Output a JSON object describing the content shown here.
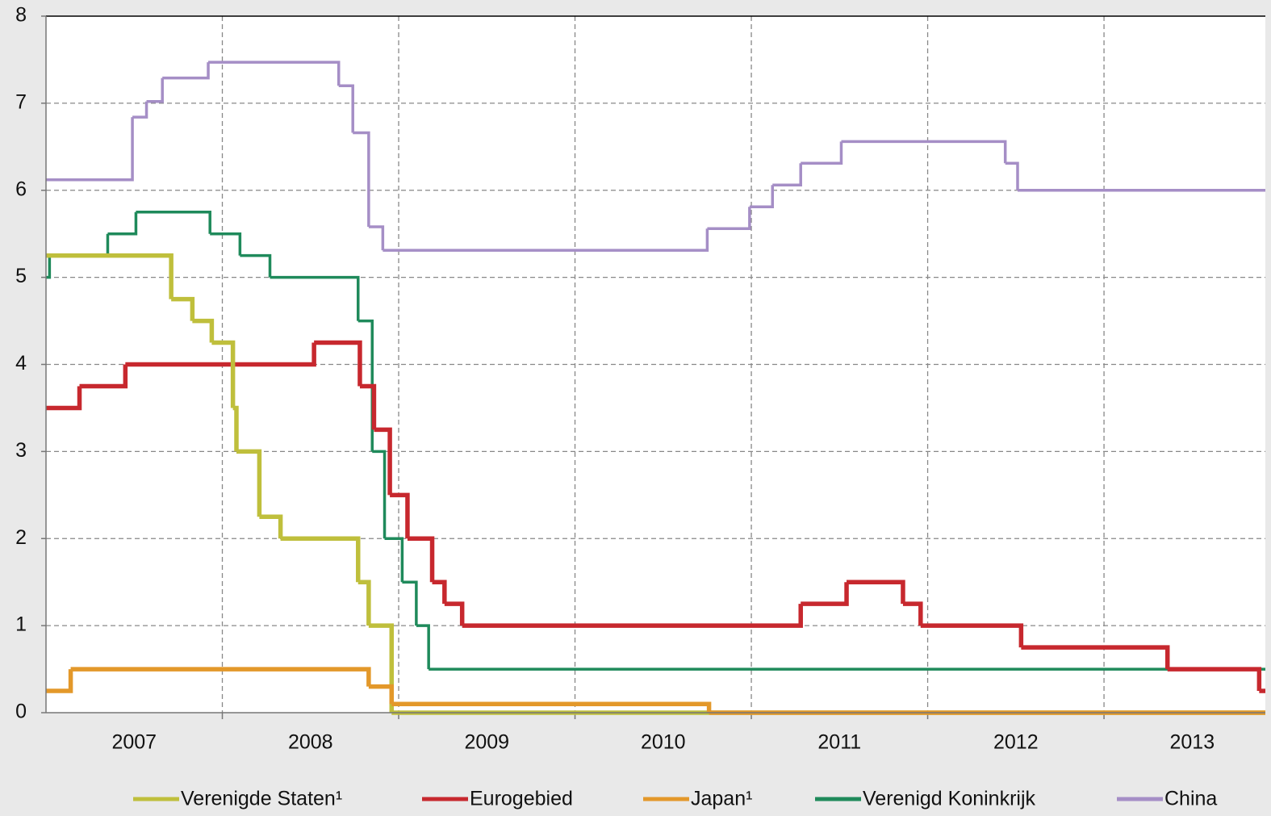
{
  "chart_data": {
    "type": "step",
    "xlim": [
      2007,
      2013.915
    ],
    "xticks": [
      {
        "value": 2007.5,
        "label": "2007"
      },
      {
        "value": 2008.5,
        "label": "2008"
      },
      {
        "value": 2009.5,
        "label": "2009"
      },
      {
        "value": 2010.5,
        "label": "2010"
      },
      {
        "value": 2011.5,
        "label": "2011"
      },
      {
        "value": 2012.5,
        "label": "2012"
      },
      {
        "value": 2013.5,
        "label": "2013"
      }
    ],
    "xgrid": [
      2008,
      2009,
      2010,
      2011,
      2012,
      2013
    ],
    "ylim": [
      0,
      8
    ],
    "yticks": [
      0,
      1,
      2,
      3,
      4,
      5,
      6,
      7,
      8
    ],
    "grid": true,
    "legend": "bottom",
    "series": [
      {
        "name": "China",
        "color": "#a58ec6",
        "width": 3.5,
        "x": [
          2007,
          2007.49,
          2007.57,
          2007.66,
          2007.92,
          2008.66,
          2008.74,
          2008.83,
          2008.91,
          2010.75,
          2010.99,
          2011.12,
          2011.28,
          2011.51,
          2012.44,
          2012.51
        ],
        "values": [
          6.12,
          6.84,
          7.02,
          7.29,
          7.47,
          7.2,
          6.66,
          5.58,
          5.31,
          5.56,
          5.81,
          6.06,
          6.31,
          6.56,
          6.31,
          6.0
        ]
      },
      {
        "name": "Verenigd Koninkrijk",
        "color": "#1f8a5b",
        "width": 3.5,
        "x": [
          2007,
          2007.02,
          2007.35,
          2007.51,
          2007.93,
          2008.1,
          2008.27,
          2008.77,
          2008.85,
          2008.92,
          2009.02,
          2009.1,
          2009.17
        ],
        "values": [
          5.0,
          5.25,
          5.5,
          5.75,
          5.5,
          5.25,
          5.0,
          4.5,
          3.0,
          2.0,
          1.5,
          1.0,
          0.5
        ]
      },
      {
        "name": "Eurogebied",
        "color": "#c7282e",
        "width": 5.5,
        "x": [
          2007,
          2007.19,
          2007.45,
          2008.52,
          2008.78,
          2008.86,
          2008.95,
          2009.05,
          2009.19,
          2009.26,
          2009.36,
          2011.28,
          2011.54,
          2011.86,
          2011.96,
          2012.53,
          2013.36,
          2013.88
        ],
        "values": [
          3.5,
          3.75,
          4.0,
          4.25,
          3.75,
          3.25,
          2.5,
          2.0,
          1.5,
          1.25,
          1.0,
          1.25,
          1.5,
          1.25,
          1.0,
          0.75,
          0.5,
          0.25
        ]
      },
      {
        "name": "Verenigde Staten¹",
        "color": "#bfbf3c",
        "width": 5.5,
        "x": [
          2007,
          2007.71,
          2007.83,
          2007.94,
          2008.06,
          2008.08,
          2008.21,
          2008.33,
          2008.77,
          2008.83,
          2008.96
        ],
        "values": [
          5.25,
          4.75,
          4.5,
          4.25,
          3.5,
          3.0,
          2.25,
          2.0,
          1.5,
          1.0,
          0
        ]
      },
      {
        "name": "Japan¹",
        "color": "#e3982a",
        "width": 5.5,
        "x": [
          2007,
          2007.14,
          2008.83,
          2008.96,
          2010.76
        ],
        "values": [
          0.25,
          0.5,
          0.3,
          0.1,
          0
        ]
      }
    ]
  }
}
